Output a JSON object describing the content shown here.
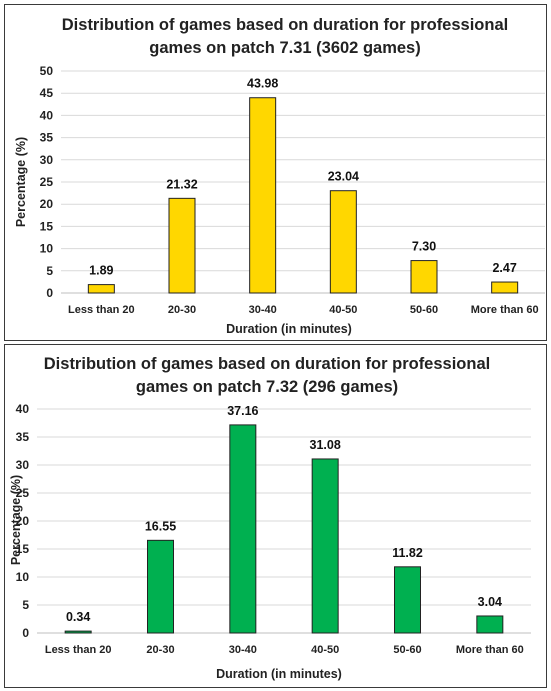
{
  "chart_data": [
    {
      "type": "bar",
      "title_line1": "Distribution of games based on duration for professional",
      "title_line2": "games on patch 7.31 (3602 games)",
      "xlabel": "Duration (in minutes)",
      "ylabel": "Percentage (%)",
      "categories": [
        "Less than 20",
        "20-30",
        "30-40",
        "40-50",
        "50-60",
        "More than 60"
      ],
      "values": [
        1.89,
        21.32,
        43.98,
        23.04,
        7.3,
        2.47
      ],
      "value_labels": [
        "1.89",
        "21.32",
        "43.98",
        "23.04",
        "7.30",
        "2.47"
      ],
      "ylim": [
        0,
        50
      ],
      "yticks": [
        "0",
        "5",
        "10",
        "15",
        "20",
        "25",
        "30",
        "35",
        "40",
        "45",
        "50"
      ],
      "grid": true,
      "bar_color": "#FFD700",
      "legend": "none"
    },
    {
      "type": "bar",
      "title_line1": "Distribution of games based on duration for professional",
      "title_line2": "games on patch 7.32 (296 games)",
      "xlabel": "Duration (in minutes)",
      "ylabel": "Percentage (%)",
      "categories": [
        "Less than 20",
        "20-30",
        "30-40",
        "40-50",
        "50-60",
        "More than 60"
      ],
      "values": [
        0.34,
        16.55,
        37.16,
        31.08,
        11.82,
        3.04
      ],
      "value_labels": [
        "0.34",
        "16.55",
        "37.16",
        "31.08",
        "11.82",
        "3.04"
      ],
      "ylim": [
        0,
        40
      ],
      "yticks": [
        "0",
        "5",
        "10",
        "15",
        "20",
        "25",
        "30",
        "35",
        "40"
      ],
      "grid": true,
      "bar_color": "#00B050",
      "legend": "none"
    }
  ]
}
